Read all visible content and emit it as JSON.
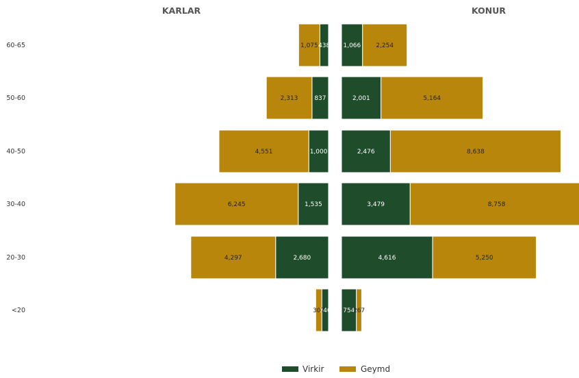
{
  "chart_data": {
    "type": "bar",
    "orientation": "horizontal",
    "layout": "population-pyramid",
    "categories": [
      "60-65",
      "50-60",
      "40-50",
      "30-40",
      "20-30",
      "<20"
    ],
    "panels": {
      "left": {
        "title": "KARLAR"
      },
      "right": {
        "title": "KONUR"
      }
    },
    "series": [
      {
        "name": "Virkir",
        "color": "#1f4d2b",
        "left": [
          438,
          837,
          1000,
          1535,
          2680,
          340
        ],
        "right": [
          1066,
          2001,
          2476,
          3479,
          4616,
          754
        ]
      },
      {
        "name": "Geymd",
        "color": "#b8860b",
        "left": [
          1075,
          2313,
          4551,
          6245,
          4297,
          307
        ],
        "right": [
          2254,
          5164,
          8638,
          8758,
          5250,
          267
        ]
      }
    ],
    "xlim": [
      0,
      12000
    ],
    "grid": false,
    "legend": {
      "position": "bottom-center",
      "entries": [
        "Virkir",
        "Geymd"
      ]
    }
  }
}
